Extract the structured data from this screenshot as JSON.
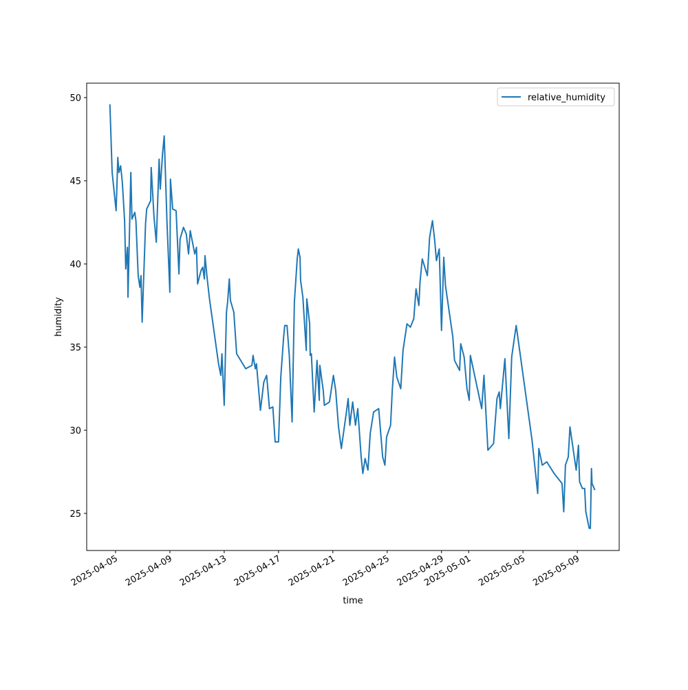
{
  "chart_data": {
    "type": "line",
    "xlabel": "time",
    "ylabel": "humidity",
    "legend": "upper right",
    "xlim": [
      "2025-04-02T21:00",
      "2025-05-12T02:00"
    ],
    "xticks": [
      "2025-04-05",
      "2025-04-09",
      "2025-04-13",
      "2025-04-17",
      "2025-04-21",
      "2025-04-25",
      "2025-04-29",
      "2025-05-01",
      "2025-05-05",
      "2025-05-09"
    ],
    "ylim": [
      22.77,
      50.87
    ],
    "yticks": [
      25,
      30,
      35,
      40,
      45,
      50
    ],
    "x": [
      "2025-04-04T14:00",
      "2025-04-04T18:00",
      "2025-04-05T01:00",
      "2025-04-05T04:00",
      "2025-04-05T06:00",
      "2025-04-05T09:00",
      "2025-04-05T12:00",
      "2025-04-05T16:00",
      "2025-04-05T18:00",
      "2025-04-05T21:00",
      "2025-04-05T22:00",
      "2025-04-06T03:00",
      "2025-04-06T05:00",
      "2025-04-06T10:00",
      "2025-04-06T12:00",
      "2025-04-06T16:00",
      "2025-04-06T19:00",
      "2025-04-06T21:00",
      "2025-04-06T23:00",
      "2025-04-07T05:00",
      "2025-04-07T07:00",
      "2025-04-07T14:00",
      "2025-04-07T15:00",
      "2025-04-07T20:00",
      "2025-04-08T00:00",
      "2025-04-08T05:00",
      "2025-04-08T07:00",
      "2025-04-08T11:00",
      "2025-04-08T14:00",
      "2025-04-08T19:00",
      "2025-04-09T00:00",
      "2025-04-09T01:00",
      "2025-04-09T05:00",
      "2025-04-09T11:00",
      "2025-04-09T16:00",
      "2025-04-09T18:00",
      "2025-04-10T00:00",
      "2025-04-10T05:00",
      "2025-04-10T09:00",
      "2025-04-10T12:00",
      "2025-04-10T20:00",
      "2025-04-10T23:00",
      "2025-04-11T01:00",
      "2025-04-11T07:00",
      "2025-04-11T10:00",
      "2025-04-11T13:00",
      "2025-04-11T14:00",
      "2025-04-11T18:00",
      "2025-04-11T22:00",
      "2025-04-12T14:00",
      "2025-04-12T18:00",
      "2025-04-12T20:00",
      "2025-04-13T00:00",
      "2025-04-13T04:00",
      "2025-04-13T06:00",
      "2025-04-13T09:00",
      "2025-04-13T11:00",
      "2025-04-13T17:00",
      "2025-04-13T22:00",
      "2025-04-14T14:00",
      "2025-04-15T01:00",
      "2025-04-15T03:00",
      "2025-04-15T07:00",
      "2025-04-15T09:00",
      "2025-04-15T16:00",
      "2025-04-15T22:00",
      "2025-04-16T03:00",
      "2025-04-16T08:00",
      "2025-04-16T14:00",
      "2025-04-16T18:00",
      "2025-04-17T00:00",
      "2025-04-17T04:00",
      "2025-04-17T09:00",
      "2025-04-17T11:00",
      "2025-04-17T15:00",
      "2025-04-17T19:00",
      "2025-04-18T00:00",
      "2025-04-18T04:00",
      "2025-04-18T09:00",
      "2025-04-18T11:00",
      "2025-04-18T14:00",
      "2025-04-18T15:00",
      "2025-04-18T19:00",
      "2025-04-19T01:00",
      "2025-04-19T02:00",
      "2025-04-19T07:00",
      "2025-04-19T08:00",
      "2025-04-19T10:00",
      "2025-04-19T15:00",
      "2025-04-19T20:00",
      "2025-04-20T00:00",
      "2025-04-20T01:00",
      "2025-04-20T07:00",
      "2025-04-20T09:00",
      "2025-04-20T18:00",
      "2025-04-21T01:00",
      "2025-04-21T05:00",
      "2025-04-21T10:00",
      "2025-04-21T15:00",
      "2025-04-22T00:00",
      "2025-04-22T03:00",
      "2025-04-22T06:00",
      "2025-04-22T11:00",
      "2025-04-22T16:00",
      "2025-04-22T20:00",
      "2025-04-23T02:00",
      "2025-04-23T05:00",
      "2025-04-23T09:00",
      "2025-04-23T14:00",
      "2025-04-23T18:00",
      "2025-04-24T00:00",
      "2025-04-24T09:00",
      "2025-04-24T16:00",
      "2025-04-24T20:00",
      "2025-04-24T23:00",
      "2025-04-25T06:00",
      "2025-04-25T09:00",
      "2025-04-25T13:00",
      "2025-04-25T17:00",
      "2025-04-26T00:00",
      "2025-04-26T04:00",
      "2025-04-26T11:00",
      "2025-04-26T17:00",
      "2025-04-26T23:00",
      "2025-04-27T03:00",
      "2025-04-27T08:00",
      "2025-04-27T10:00",
      "2025-04-27T14:00",
      "2025-04-27T23:00",
      "2025-04-28T03:00",
      "2025-04-28T08:00",
      "2025-04-28T12:00",
      "2025-04-28T15:00",
      "2025-04-28T20:00",
      "2025-04-29T00:00",
      "2025-04-29T04:00",
      "2025-04-29T07:00",
      "2025-04-29T20:00",
      "2025-04-29T23:00",
      "2025-04-30T08:00",
      "2025-04-30T10:00",
      "2025-04-30T16:00",
      "2025-04-30T21:00",
      "2025-05-01T01:00",
      "2025-05-01T03:00",
      "2025-05-01T23:00",
      "2025-05-02T03:00",
      "2025-05-02T10:00",
      "2025-05-02T20:00",
      "2025-05-03T02:00",
      "2025-05-03T06:00",
      "2025-05-03T08:00",
      "2025-05-03T16:00",
      "2025-05-03T23:00",
      "2025-05-04T04:00",
      "2025-05-04T09:00",
      "2025-05-04T12:00",
      "2025-05-05T16:00",
      "2025-05-06T02:00",
      "2025-05-06T04:00",
      "2025-05-06T10:00",
      "2025-05-06T18:00",
      "2025-05-07T07:00",
      "2025-05-07T21:00",
      "2025-05-08T00:00",
      "2025-05-08T03:00",
      "2025-05-08T08:00",
      "2025-05-08T11:00",
      "2025-05-08T22:00",
      "2025-05-09T02:00",
      "2025-05-09T04:00",
      "2025-05-09T09:00",
      "2025-05-09T13:00",
      "2025-05-09T15:00",
      "2025-05-09T21:00",
      "2025-05-09T23:00",
      "2025-05-10T01:00",
      "2025-05-10T02:00",
      "2025-05-10T07:00"
    ],
    "series": [
      {
        "name": "relative_humidity",
        "color": "#1f77b4",
        "values": [
          49.6,
          45.5,
          43.2,
          46.4,
          45.5,
          45.9,
          44.9,
          42.6,
          39.7,
          41.0,
          38.0,
          45.5,
          42.7,
          43.1,
          42.6,
          39.3,
          38.6,
          39.3,
          36.5,
          42.4,
          43.3,
          43.8,
          45.8,
          42.8,
          41.3,
          46.3,
          44.5,
          46.6,
          47.7,
          42.4,
          38.3,
          45.1,
          43.3,
          43.2,
          39.4,
          41.5,
          42.2,
          41.8,
          40.6,
          42.0,
          40.6,
          41.0,
          38.8,
          39.6,
          39.8,
          39.1,
          40.5,
          39.1,
          37.9,
          34.0,
          33.3,
          34.6,
          31.5,
          37.1,
          37.7,
          39.1,
          37.8,
          37.1,
          34.6,
          33.7,
          33.9,
          34.5,
          33.7,
          34.0,
          31.2,
          32.9,
          33.3,
          31.3,
          31.4,
          29.3,
          29.3,
          33.2,
          35.6,
          36.3,
          36.3,
          34.5,
          30.5,
          37.7,
          40.3,
          40.9,
          40.4,
          39.0,
          38.0,
          34.8,
          37.9,
          36.4,
          34.5,
          34.6,
          31.1,
          34.2,
          31.8,
          33.9,
          32.4,
          31.5,
          31.7,
          33.3,
          32.4,
          30.2,
          28.9,
          31.1,
          31.9,
          30.3,
          31.7,
          30.3,
          31.3,
          28.4,
          27.4,
          28.3,
          27.6,
          29.8,
          31.1,
          31.3,
          28.4,
          27.9,
          29.6,
          30.3,
          32.4,
          34.4,
          33.2,
          32.5,
          34.8,
          36.4,
          36.2,
          36.7,
          38.5,
          37.5,
          38.9,
          40.3,
          39.3,
          41.6,
          42.6,
          41.4,
          40.2,
          40.9,
          36.0,
          40.4,
          38.7,
          35.6,
          34.2,
          33.6,
          35.2,
          34.4,
          32.5,
          31.8,
          34.5,
          31.3,
          33.3,
          28.8,
          29.2,
          31.9,
          32.3,
          31.3,
          34.3,
          29.5,
          34.4,
          35.6,
          36.3,
          29.4,
          26.2,
          28.9,
          27.9,
          28.1,
          27.4,
          26.8,
          25.1,
          27.9,
          28.4,
          30.2,
          27.6,
          29.1,
          26.9,
          26.5,
          26.5,
          25.1,
          24.1,
          24.1,
          27.7,
          26.8,
          26.4
        ]
      }
    ]
  }
}
